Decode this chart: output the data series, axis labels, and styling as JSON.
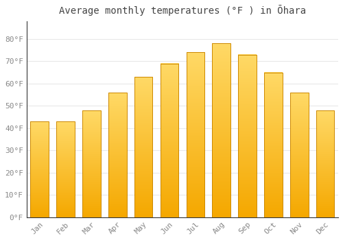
{
  "title": "Average monthly temperatures (°F ) in Ōhara",
  "months": [
    "Jan",
    "Feb",
    "Mar",
    "Apr",
    "May",
    "Jun",
    "Jul",
    "Aug",
    "Sep",
    "Oct",
    "Nov",
    "Dec"
  ],
  "values": [
    43,
    43,
    48,
    56,
    63,
    69,
    74,
    78,
    73,
    65,
    56,
    48
  ],
  "bar_color_dark": "#F5A800",
  "bar_color_light": "#FFD966",
  "ylim": [
    0,
    88
  ],
  "yticks": [
    0,
    10,
    20,
    30,
    40,
    50,
    60,
    70,
    80
  ],
  "ytick_labels": [
    "0°F",
    "10°F",
    "20°F",
    "30°F",
    "40°F",
    "50°F",
    "60°F",
    "70°F",
    "80°F"
  ],
  "background_color": "#FFFFFF",
  "grid_color": "#E8E8E8",
  "title_fontsize": 10,
  "tick_fontsize": 8,
  "tick_color": "#888888",
  "bar_edge_color": "#CC8800",
  "bar_width": 0.7
}
